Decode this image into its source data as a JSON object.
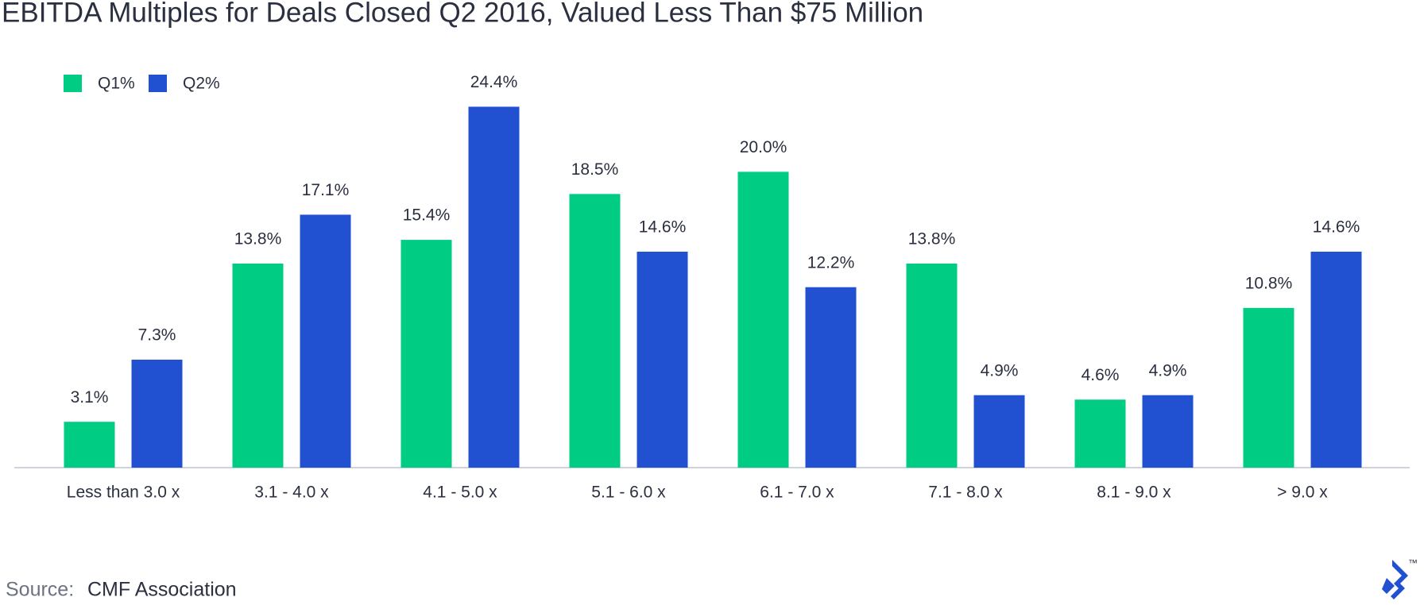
{
  "chart_data": {
    "type": "bar",
    "title": "EBITDA Multiples for Deals Closed Q2 2016, Valued Less Than $75 Million",
    "categories": [
      "Less than 3.0 x",
      "3.1 - 4.0 x",
      "4.1 - 5.0 x",
      "5.1 - 6.0 x",
      "6.1 - 7.0 x",
      "7.1 - 8.0 x",
      "8.1 - 9.0 x",
      "> 9.0 x"
    ],
    "series": [
      {
        "name": "Q1%",
        "color": "#00cc83",
        "values": [
          3.1,
          13.8,
          15.4,
          18.5,
          20.0,
          13.8,
          4.6,
          10.8
        ],
        "value_labels": [
          "3.1%",
          "13.8%",
          "15.4%",
          "18.5%",
          "20.0%",
          "13.8%",
          "4.6%",
          "10.8%"
        ]
      },
      {
        "name": "Q2%",
        "color": "#2150d1",
        "values": [
          7.3,
          17.1,
          24.4,
          14.6,
          12.2,
          4.9,
          4.9,
          14.6
        ],
        "value_labels": [
          "7.3%",
          "17.1%",
          "24.4%",
          "14.6%",
          "12.2%",
          "4.9%",
          "4.9%",
          "14.6%"
        ]
      }
    ],
    "legend": "top-left",
    "source_label": "Source:",
    "source": "CMF Association",
    "logo_mark": "™"
  }
}
